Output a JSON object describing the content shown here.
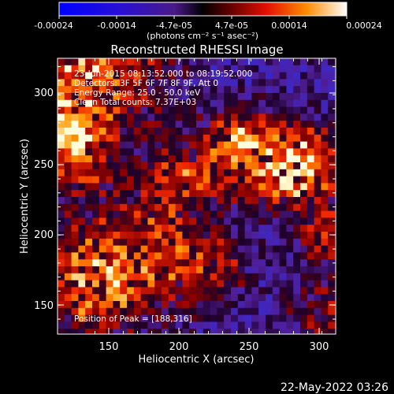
{
  "colorbar": {
    "tick_labels": [
      "-0.00024",
      "-0.00014",
      "-4.7e-05",
      "4.7e-05",
      "0.00014",
      "0.00024"
    ],
    "unit_label": "(photons cm⁻² s⁻¹ asec⁻²)"
  },
  "image": {
    "title": "Reconstructed RHESSI Image",
    "info_lines": [
      "23-Jun-2015 08:13:52.000 to 08:19:52.000",
      "Detectors: 3F 5F 6F 7F 8F 9F, Att 0",
      "Energy Range: 25.0 - 50.0 keV",
      "Clean    Total counts: 7.37E+03"
    ],
    "peak_label": "Position of Peak = [188,316]",
    "xlabel": "Heliocentric X (arcsec)",
    "ylabel": "Heliocentric Y (arcsec)",
    "x_ticks": [
      "150",
      "200",
      "250",
      "300"
    ],
    "y_ticks": [
      "150",
      "200",
      "250",
      "300"
    ]
  },
  "footer": {
    "timestamp": "22-May-2022 03:26"
  },
  "colors": {
    "background": "#000000",
    "colormap": [
      "#0000ff",
      "#3a1fb8",
      "#5a2a9a",
      "#000000",
      "#7a0000",
      "#ff2a00",
      "#ff9a00",
      "#ffffff"
    ]
  }
}
